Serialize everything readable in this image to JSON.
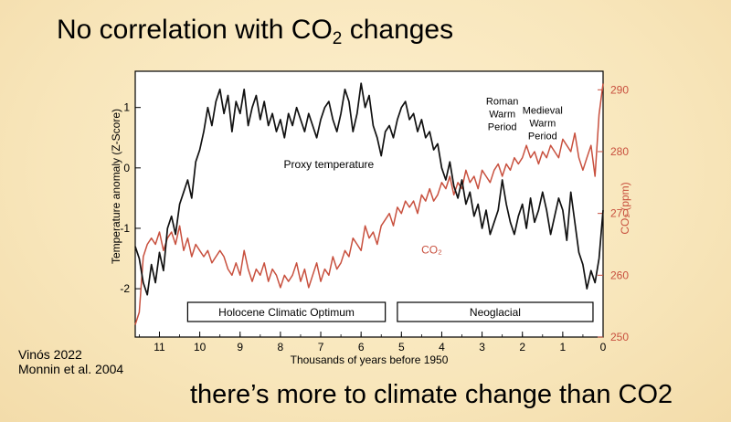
{
  "title_prefix": "No correlation with CO",
  "title_sub": "2",
  "title_suffix": " changes",
  "subtitle": "there’s more to climate change than CO2",
  "credits": [
    "Vinós 2022",
    "Monnin et al. 2004"
  ],
  "chart_data": {
    "type": "line",
    "xlabel": "Thousands of years before 1950",
    "ylabel_left": "Temperature anomaly (Z-Score)",
    "ylabel_right": "CO₂ (ppm)",
    "x_reversed": true,
    "xlim": [
      11.6,
      0
    ],
    "ylim_left": [
      -2.8,
      1.6
    ],
    "ylim_right": [
      250,
      293
    ],
    "x_ticks": [
      11,
      10,
      9,
      8,
      7,
      6,
      5,
      4,
      3,
      2,
      1,
      0
    ],
    "y_ticks_left": [
      1,
      0,
      -1,
      -2
    ],
    "y_ticks_right": [
      290,
      280,
      270,
      260,
      250
    ],
    "colors": {
      "temperature": "#111111",
      "co2": "#c8503e",
      "right_axis": "#c8503e"
    },
    "annotations": [
      {
        "text": "Proxy temperature",
        "x": 6.8,
        "y": 0.0,
        "axis": "left"
      },
      {
        "text": "CO₂",
        "x": 4.25,
        "y": 263.5,
        "axis": "right",
        "color": "#c8503e"
      },
      {
        "lines": [
          "Roman",
          "Warm",
          "Period"
        ],
        "x": 2.5,
        "y": 1.05,
        "axis": "left"
      },
      {
        "lines": [
          "Medieval",
          "Warm",
          "Period"
        ],
        "x": 1.5,
        "y": 0.9,
        "axis": "left"
      }
    ],
    "periods": [
      {
        "label": "Holocene Climatic Optimum",
        "x_start": 10.3,
        "x_end": 5.4
      },
      {
        "label": "Neoglacial",
        "x_start": 5.1,
        "x_end": 0.25
      }
    ],
    "series": [
      {
        "name": "Proxy temperature",
        "axis": "left",
        "x": [
          11.6,
          11.5,
          11.4,
          11.3,
          11.2,
          11.1,
          11.0,
          10.9,
          10.8,
          10.7,
          10.6,
          10.5,
          10.4,
          10.3,
          10.2,
          10.1,
          10.0,
          9.9,
          9.8,
          9.7,
          9.6,
          9.5,
          9.4,
          9.3,
          9.2,
          9.1,
          9.0,
          8.9,
          8.8,
          8.7,
          8.6,
          8.5,
          8.4,
          8.3,
          8.2,
          8.1,
          8.0,
          7.9,
          7.8,
          7.7,
          7.6,
          7.5,
          7.4,
          7.3,
          7.2,
          7.1,
          7.0,
          6.9,
          6.8,
          6.7,
          6.6,
          6.5,
          6.4,
          6.3,
          6.2,
          6.1,
          6.0,
          5.9,
          5.8,
          5.7,
          5.6,
          5.5,
          5.4,
          5.3,
          5.2,
          5.1,
          5.0,
          4.9,
          4.8,
          4.7,
          4.6,
          4.5,
          4.4,
          4.3,
          4.2,
          4.1,
          4.0,
          3.9,
          3.8,
          3.7,
          3.6,
          3.5,
          3.4,
          3.3,
          3.2,
          3.1,
          3.0,
          2.9,
          2.8,
          2.7,
          2.6,
          2.5,
          2.4,
          2.3,
          2.2,
          2.1,
          2.0,
          1.9,
          1.8,
          1.7,
          1.6,
          1.5,
          1.4,
          1.3,
          1.2,
          1.1,
          1.0,
          0.9,
          0.8,
          0.7,
          0.6,
          0.5,
          0.4,
          0.3,
          0.2,
          0.1,
          0.0
        ],
        "values": [
          -1.3,
          -1.5,
          -1.9,
          -2.1,
          -1.6,
          -1.9,
          -1.4,
          -1.7,
          -1.0,
          -0.8,
          -1.1,
          -0.6,
          -0.4,
          -0.2,
          -0.5,
          0.1,
          0.3,
          0.6,
          1.0,
          0.7,
          1.1,
          1.3,
          0.9,
          1.2,
          0.6,
          1.1,
          0.9,
          1.3,
          0.7,
          1.0,
          1.2,
          0.8,
          1.1,
          0.7,
          0.9,
          0.6,
          0.8,
          0.5,
          0.9,
          0.7,
          1.0,
          0.8,
          0.6,
          0.9,
          0.7,
          0.5,
          0.8,
          1.0,
          1.1,
          0.8,
          0.6,
          0.9,
          1.3,
          1.1,
          0.6,
          0.9,
          1.4,
          1.0,
          1.2,
          0.7,
          0.5,
          0.2,
          0.6,
          0.7,
          0.5,
          0.8,
          1.0,
          1.1,
          0.8,
          0.9,
          0.6,
          0.8,
          0.5,
          0.6,
          0.3,
          0.4,
          0.0,
          -0.2,
          0.1,
          -0.3,
          -0.5,
          -0.2,
          -0.6,
          -0.4,
          -0.8,
          -0.6,
          -1.0,
          -0.7,
          -1.1,
          -0.9,
          -0.7,
          -0.2,
          -0.6,
          -0.9,
          -1.1,
          -0.8,
          -0.6,
          -1.0,
          -0.5,
          -0.9,
          -0.7,
          -0.4,
          -0.7,
          -1.1,
          -0.8,
          -0.5,
          -0.7,
          -1.2,
          -0.4,
          -0.9,
          -1.4,
          -1.6,
          -2.0,
          -1.7,
          -1.9,
          -1.5,
          -0.7
        ]
      },
      {
        "name": "CO₂",
        "axis": "right",
        "x": [
          11.6,
          11.5,
          11.4,
          11.3,
          11.2,
          11.1,
          11.0,
          10.9,
          10.8,
          10.7,
          10.6,
          10.5,
          10.4,
          10.3,
          10.2,
          10.1,
          10.0,
          9.9,
          9.8,
          9.7,
          9.6,
          9.5,
          9.4,
          9.3,
          9.2,
          9.1,
          9.0,
          8.9,
          8.8,
          8.7,
          8.6,
          8.5,
          8.4,
          8.3,
          8.2,
          8.1,
          8.0,
          7.9,
          7.8,
          7.7,
          7.6,
          7.5,
          7.4,
          7.3,
          7.2,
          7.1,
          7.0,
          6.9,
          6.8,
          6.7,
          6.6,
          6.5,
          6.4,
          6.3,
          6.2,
          6.1,
          6.0,
          5.9,
          5.8,
          5.7,
          5.6,
          5.5,
          5.4,
          5.3,
          5.2,
          5.1,
          5.0,
          4.9,
          4.8,
          4.7,
          4.6,
          4.5,
          4.4,
          4.3,
          4.2,
          4.1,
          4.0,
          3.9,
          3.8,
          3.7,
          3.6,
          3.5,
          3.4,
          3.3,
          3.2,
          3.1,
          3.0,
          2.9,
          2.8,
          2.7,
          2.6,
          2.5,
          2.4,
          2.3,
          2.2,
          2.1,
          2.0,
          1.9,
          1.8,
          1.7,
          1.6,
          1.5,
          1.4,
          1.3,
          1.2,
          1.1,
          1.0,
          0.9,
          0.8,
          0.7,
          0.6,
          0.5,
          0.4,
          0.3,
          0.2,
          0.1,
          0.0
        ],
        "values": [
          252,
          254,
          263,
          265,
          266,
          265,
          267,
          264,
          266,
          267,
          265,
          268,
          264,
          266,
          263,
          265,
          264,
          263,
          264,
          262,
          263,
          264,
          263,
          261,
          260,
          262,
          260,
          264,
          261,
          259,
          261,
          260,
          262,
          259,
          261,
          260,
          258,
          260,
          259,
          260,
          262,
          259,
          261,
          258,
          260,
          262,
          259,
          261,
          260,
          263,
          261,
          262,
          264,
          263,
          266,
          265,
          264,
          268,
          266,
          267,
          265,
          268,
          269,
          270,
          268,
          271,
          270,
          272,
          271,
          272,
          270,
          273,
          272,
          274,
          272,
          273,
          275,
          274,
          276,
          273,
          275,
          274,
          277,
          275,
          276,
          274,
          277,
          276,
          275,
          277,
          278,
          276,
          278,
          277,
          279,
          278,
          279,
          281,
          279,
          280,
          278,
          280,
          279,
          281,
          280,
          279,
          282,
          281,
          280,
          283,
          279,
          277,
          279,
          281,
          276,
          286,
          291
        ]
      }
    ]
  }
}
